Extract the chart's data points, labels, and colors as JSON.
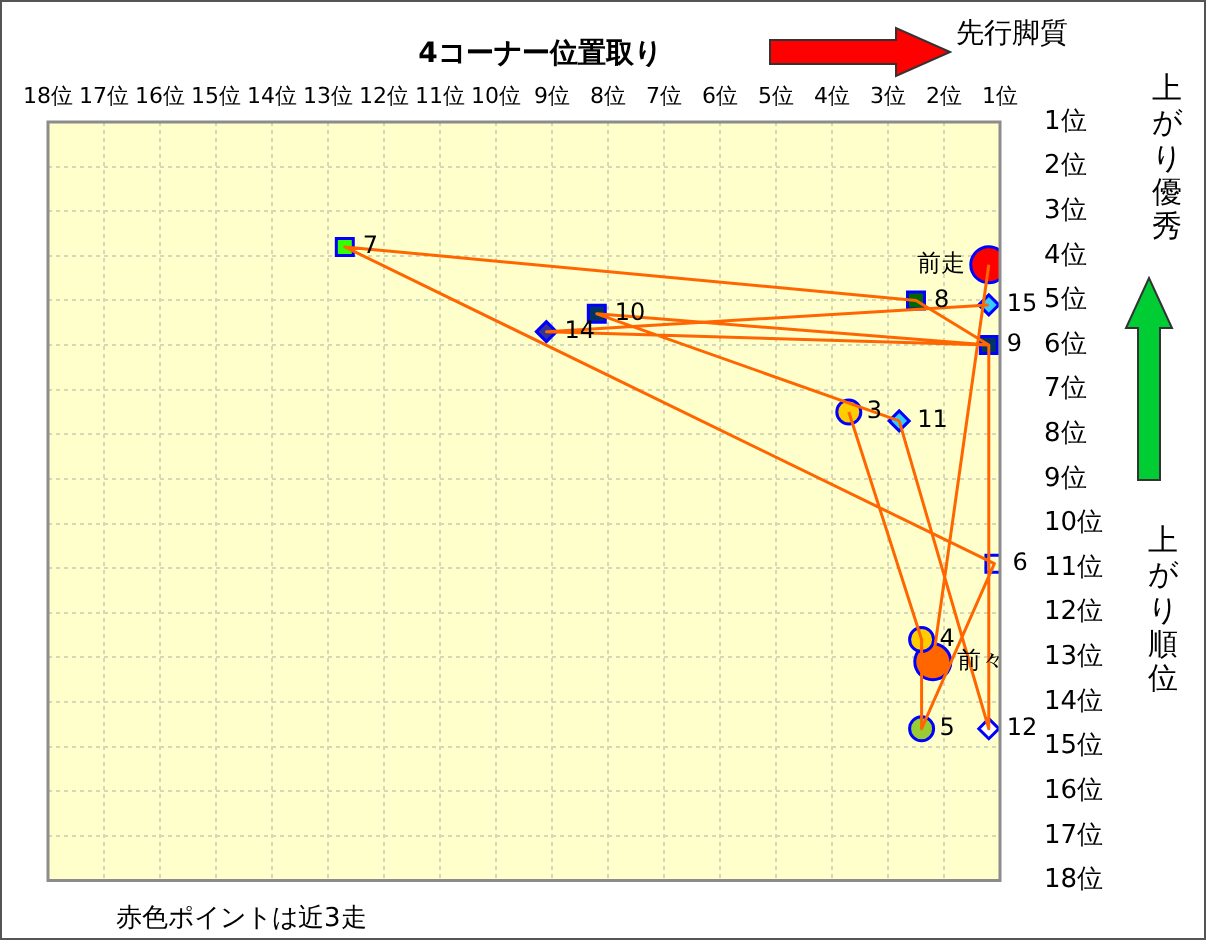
{
  "chart_data": {
    "type": "scatter",
    "title": "4コーナー位置取り",
    "ylabel": "上がり順位",
    "annotations": [
      "先行脚質",
      "上がり優秀",
      "赤色ポイントは近3走",
      {
        "text": "7",
        "x": 12.7,
        "y": 3.8
      },
      {
        "text": "8",
        "x": 2.5,
        "y": 5.0
      },
      {
        "text": "10",
        "x": 8.2,
        "y": 5.3
      },
      {
        "text": "9",
        "x": 1.2,
        "y": 6.0
      },
      {
        "text": "6",
        "x": 1.1,
        "y": 10.9
      },
      {
        "text": "15",
        "x": 1.2,
        "y": 5.1
      },
      {
        "text": "14",
        "x": 9.1,
        "y": 5.7
      },
      {
        "text": "11",
        "x": 2.8,
        "y": 7.7
      },
      {
        "text": "12",
        "x": 1.2,
        "y": 14.6
      },
      {
        "text": "3",
        "x": 3.7,
        "y": 7.5
      },
      {
        "text": "4",
        "x": 2.4,
        "y": 12.6
      },
      {
        "text": "5",
        "x": 2.4,
        "y": 14.6
      },
      {
        "text": "前走",
        "x": 1.2,
        "y": 4.2
      },
      {
        "text": "前々",
        "x": 2.2,
        "y": 13.1
      }
    ],
    "xlim": [
      18,
      1
    ],
    "ylim": [
      18,
      1
    ],
    "xticks": [
      {
        "value": 18,
        "label": "18位"
      },
      {
        "value": 17,
        "label": "17位"
      },
      {
        "value": 16,
        "label": "16位"
      },
      {
        "value": 15,
        "label": "15位"
      },
      {
        "value": 14,
        "label": "14位"
      },
      {
        "value": 13,
        "label": "13位"
      },
      {
        "value": 12,
        "label": "12位"
      },
      {
        "value": 11,
        "label": "11位"
      },
      {
        "value": 10,
        "label": "10位"
      },
      {
        "value": 9,
        "label": "9位"
      },
      {
        "value": 8,
        "label": "8位"
      },
      {
        "value": 7,
        "label": "7位"
      },
      {
        "value": 6,
        "label": "6位"
      },
      {
        "value": 5,
        "label": "5位"
      },
      {
        "value": 4,
        "label": "4位"
      },
      {
        "value": 3,
        "label": "3位"
      },
      {
        "value": 2,
        "label": "2位"
      },
      {
        "value": 1,
        "label": "1位"
      }
    ],
    "yticks": [
      {
        "value": 1,
        "label": "1位"
      },
      {
        "value": 2,
        "label": "2位"
      },
      {
        "value": 3,
        "label": "3位"
      },
      {
        "value": 4,
        "label": "4位"
      },
      {
        "value": 5,
        "label": "5位"
      },
      {
        "value": 6,
        "label": "6位"
      },
      {
        "value": 7,
        "label": "7位"
      },
      {
        "value": 8,
        "label": "8位"
      },
      {
        "value": 9,
        "label": "9位"
      },
      {
        "value": 10,
        "label": "10位"
      },
      {
        "value": 11,
        "label": "11位"
      },
      {
        "value": 12,
        "label": "12位"
      },
      {
        "value": 13,
        "label": "13位"
      },
      {
        "value": 14,
        "label": "14位"
      },
      {
        "value": 15,
        "label": "15位"
      },
      {
        "value": 16,
        "label": "16位"
      },
      {
        "value": 17,
        "label": "17位"
      },
      {
        "value": 18,
        "label": "18位"
      }
    ],
    "grid": true,
    "legend": false,
    "series": [
      {
        "type": "line",
        "color": "#ff6600",
        "marker": "none",
        "x": [
          3.7,
          2.4,
          2.4,
          1.1,
          12.7,
          2.5,
          1.2,
          8.2,
          2.8,
          1.2,
          1.2,
          9.1,
          1.2,
          null,
          2.2,
          1.2
        ],
        "values": [
          7.5,
          12.6,
          14.6,
          10.9,
          3.8,
          5.0,
          6.0,
          5.3,
          7.7,
          14.6,
          6.0,
          5.7,
          5.1,
          null,
          13.1,
          4.2
        ]
      },
      {
        "type": "scatter",
        "marker": "square",
        "x": [
          12.7,
          2.5,
          8.2,
          1.2,
          1.1
        ],
        "values": [
          3.8,
          5.0,
          5.3,
          6.0,
          10.9
        ],
        "colors": [
          "#33ff00",
          "#006600",
          "#003366",
          "#003366",
          "#ffffcc"
        ]
      },
      {
        "type": "scatter",
        "marker": "diamond",
        "x": [
          1.2,
          9.1,
          2.8,
          1.2
        ],
        "values": [
          5.1,
          5.7,
          7.7,
          14.6
        ],
        "colors": [
          "#33ccff",
          "#333399",
          "#33ccff",
          "#ffffff"
        ]
      },
      {
        "type": "scatter",
        "marker": "circle",
        "x": [
          3.7,
          2.4,
          2.4
        ],
        "values": [
          7.5,
          12.6,
          14.6
        ],
        "colors": [
          "#ffcc00",
          "#ffcc00",
          "#99cc33"
        ]
      },
      {
        "type": "scatter",
        "marker": "circle",
        "x": [
          1.2,
          2.2
        ],
        "values": [
          4.2,
          13.1
        ],
        "colors": [
          "#ff0000",
          "#ff6600"
        ]
      }
    ]
  }
}
